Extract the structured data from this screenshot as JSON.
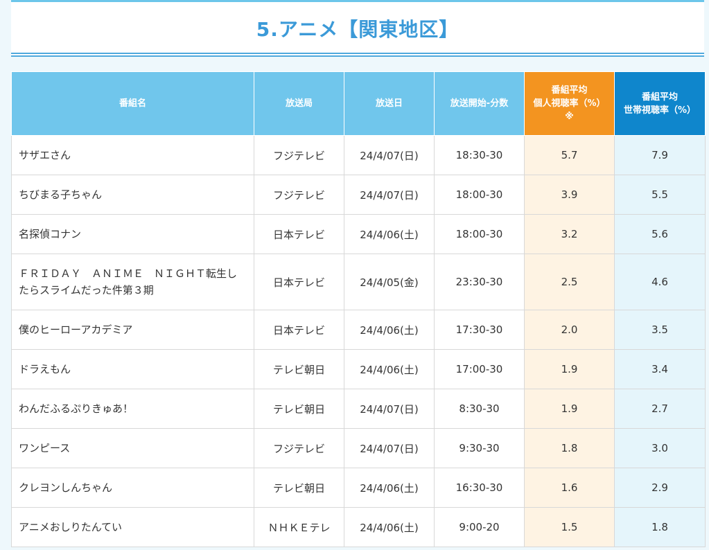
{
  "header": {
    "title": "5.アニメ【関東地区】"
  },
  "table": {
    "headers": {
      "program": "番組名",
      "station": "放送局",
      "date": "放送日",
      "start": "放送開始-分数",
      "personal_line1": "番組平均",
      "personal_line2": "個人視聴率（%）",
      "personal_note": "※",
      "household_line1": "番組平均",
      "household_line2": "世帯視聴率（%）"
    },
    "rows": [
      {
        "name": "サザエさん",
        "station": "フジテレビ",
        "date": "24/4/07(日)",
        "start": "18:30-30",
        "personal": "5.7",
        "household": "7.9"
      },
      {
        "name": "ちびまる子ちゃん",
        "station": "フジテレビ",
        "date": "24/4/07(日)",
        "start": "18:00-30",
        "personal": "3.9",
        "household": "5.5"
      },
      {
        "name": "名探偵コナン",
        "station": "日本テレビ",
        "date": "24/4/06(土)",
        "start": "18:00-30",
        "personal": "3.2",
        "household": "5.6"
      },
      {
        "name": "ＦＲＩＤＡＹ　ＡＮＩＭＥ　ＮＩＧＨＴ転生したらスライムだった件第３期",
        "station": "日本テレビ",
        "date": "24/4/05(金)",
        "start": "23:30-30",
        "personal": "2.5",
        "household": "4.6"
      },
      {
        "name": "僕のヒーローアカデミア",
        "station": "日本テレビ",
        "date": "24/4/06(土)",
        "start": "17:30-30",
        "personal": "2.0",
        "household": "3.5"
      },
      {
        "name": "ドラえもん",
        "station": "テレビ朝日",
        "date": "24/4/06(土)",
        "start": "17:00-30",
        "personal": "1.9",
        "household": "3.4"
      },
      {
        "name": "わんだふるぷりきゅあ！",
        "station": "テレビ朝日",
        "date": "24/4/07(日)",
        "start": "8:30-30",
        "personal": "1.9",
        "household": "2.7"
      },
      {
        "name": "ワンピース",
        "station": "フジテレビ",
        "date": "24/4/07(日)",
        "start": "9:30-30",
        "personal": "1.8",
        "household": "3.0"
      },
      {
        "name": "クレヨンしんちゃん",
        "station": "テレビ朝日",
        "date": "24/4/06(土)",
        "start": "16:30-30",
        "personal": "1.6",
        "household": "2.9"
      },
      {
        "name": "アニメおしりたんてい",
        "station": "ＮＨＫＥテレ",
        "date": "24/4/06(土)",
        "start": "9:00-20",
        "personal": "1.5",
        "household": "1.8"
      }
    ]
  },
  "colors": {
    "header_title": "#3b9ad8",
    "header_cell": "#70c6ec",
    "personal_header": "#f39420",
    "household_header": "#0f86cc",
    "personal_cell": "#fef3e3",
    "household_cell": "#e5f5fb"
  }
}
